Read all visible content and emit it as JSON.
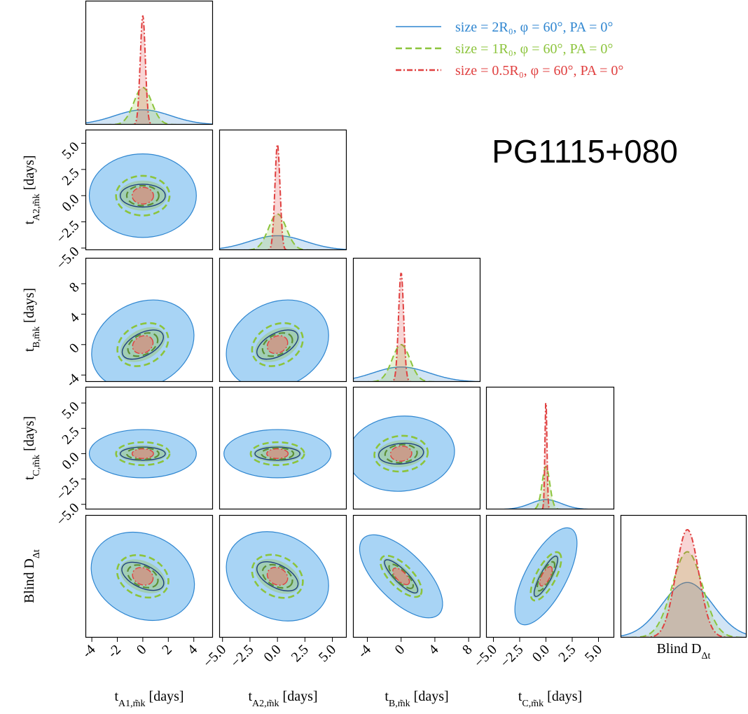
{
  "chart_data": {
    "type": "corner",
    "title": "PG1115+080",
    "series": [
      {
        "name": "size = 2R₀, φ = 60°, PA = 0°",
        "color": "#2f86d0",
        "style": "solid"
      },
      {
        "name": "size = 1R₀, φ = 60°, PA = 0°",
        "color": "#8cc43c",
        "style": "dashed"
      },
      {
        "name": "size = 0.5R₀, φ = 60°, PA = 0°",
        "color": "#e04040",
        "style": "dashdot"
      }
    ],
    "parameters": [
      {
        "label": {
          "main": "t",
          "sub": "A1,m̃k",
          "rest": " [days]"
        },
        "xlim": [
          -4.5,
          5.5
        ],
        "ticks": [
          -4,
          -2,
          0,
          2,
          4
        ]
      },
      {
        "label": {
          "main": "t",
          "sub": "A2,m̃k",
          "rest": " [days]"
        },
        "xlim": [
          -5.3,
          6.3
        ],
        "ylim": [
          -5.2,
          6.3
        ],
        "ticks": [
          {
            "value": -5,
            "label": "−5.0"
          },
          {
            "value": -2.5,
            "label": "−2.5"
          },
          {
            "value": 0,
            "label": "0.0"
          },
          {
            "value": 2.5,
            "label": "2.5"
          },
          {
            "value": 5,
            "label": "5.0"
          }
        ]
      },
      {
        "label": {
          "main": "t",
          "sub": "B,m̃k",
          "rest": " [days]"
        },
        "xlim": [
          -5.7,
          9.4
        ],
        "ylim": [
          -4.9,
          11.4
        ],
        "ticks": [
          -4,
          0,
          4,
          8
        ]
      },
      {
        "label": {
          "main": "t",
          "sub": "C,m̃k",
          "rest": " [days]"
        },
        "xlim": [
          -5.7,
          6.5
        ],
        "ylim": [
          -5.5,
          6.6
        ],
        "ticks": [
          {
            "value": -5,
            "label": "−5.0"
          },
          {
            "value": -2.5,
            "label": "−2.5"
          },
          {
            "value": 0,
            "label": "0.0"
          },
          {
            "value": 2.5,
            "label": "2.5"
          },
          {
            "value": 5,
            "label": "5.0"
          }
        ]
      },
      {
        "label": {
          "main": "Blind D",
          "sub": "Δt"
        }
      }
    ]
  }
}
